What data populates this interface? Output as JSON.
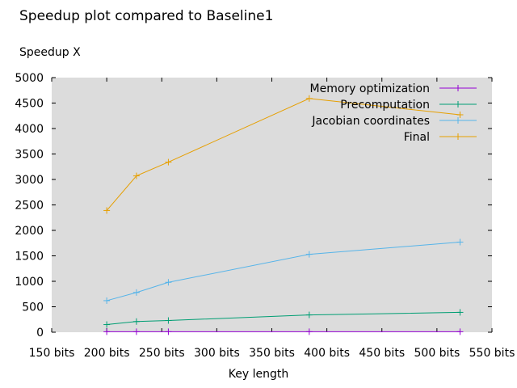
{
  "chart_data": {
    "type": "line",
    "title": "Speedup plot compared to Baseline1",
    "ylabel": "Speedup X",
    "xlabel": "Key length",
    "x": [
      200,
      227,
      256,
      384,
      521
    ],
    "xlim": [
      150,
      550
    ],
    "ylim": [
      0,
      5000
    ],
    "xticks": [
      150,
      200,
      250,
      300,
      350,
      400,
      450,
      500,
      550
    ],
    "xtick_labels": [
      "150 bits",
      "200 bits",
      "250 bits",
      "300 bits",
      "350 bits",
      "400 bits",
      "450 bits",
      "500 bits",
      "550 bits"
    ],
    "yticks": [
      0,
      500,
      1000,
      1500,
      2000,
      2500,
      3000,
      3500,
      4000,
      4500,
      5000
    ],
    "ytick_labels": [
      "0",
      "500",
      "1000",
      "1500",
      "2000",
      "2500",
      "3000",
      "3500",
      "4000",
      "4500",
      "5000"
    ],
    "grid": false,
    "legend_position": "top-right",
    "plot_background": "#dcdcdc",
    "series": [
      {
        "name": "Memory optimization",
        "color": "#9400d3",
        "values": [
          10,
          10,
          10,
          10,
          10
        ]
      },
      {
        "name": "Precomputation",
        "color": "#009e73",
        "values": [
          150,
          210,
          230,
          340,
          390
        ]
      },
      {
        "name": "Jacobian coordinates",
        "color": "#56b4e9",
        "values": [
          620,
          780,
          980,
          1530,
          1770
        ]
      },
      {
        "name": "Final",
        "color": "#e69f00",
        "values": [
          2390,
          3070,
          3340,
          4590,
          4270
        ]
      }
    ]
  }
}
